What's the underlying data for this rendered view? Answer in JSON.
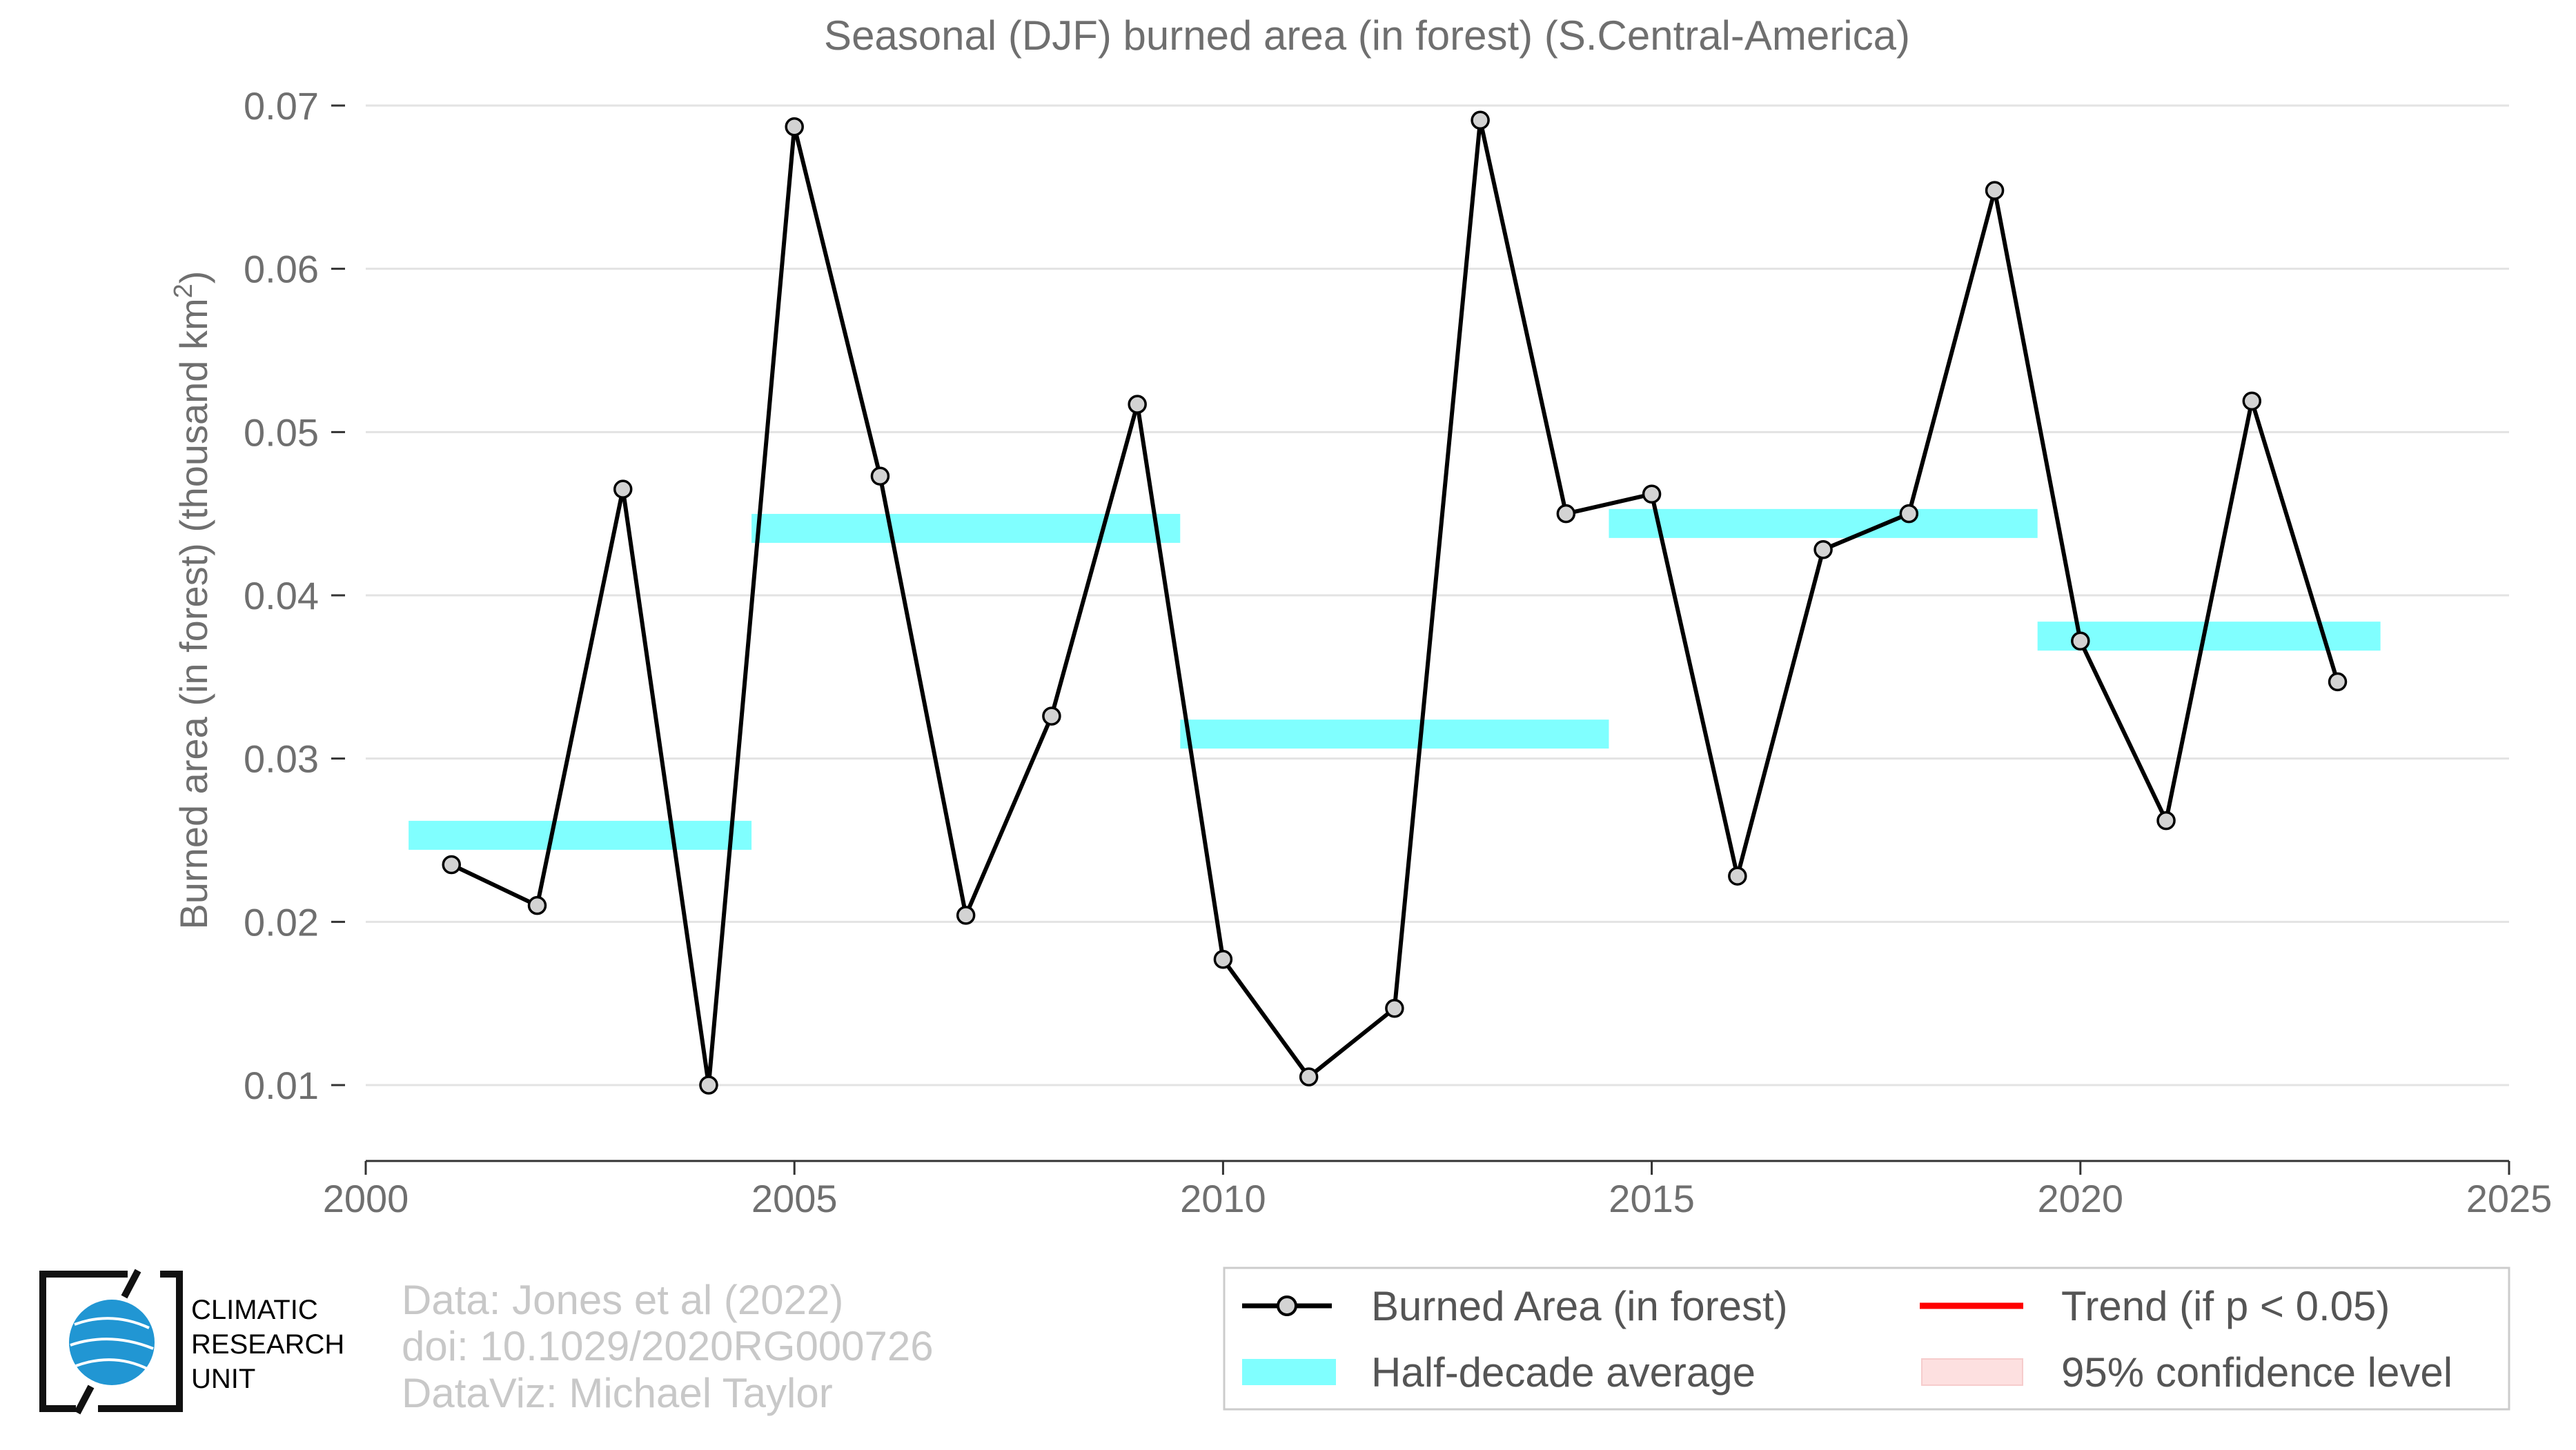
{
  "chart_data": {
    "type": "line",
    "title": "Seasonal (DJF) burned area (in forest) (S.Central-America)",
    "ylabel": "Burned area (in forest) (thousand km",
    "ylabel_sup": "2",
    "ylabel_close": ")",
    "xlim": [
      2000,
      2025
    ],
    "ylim": [
      0.0055,
      0.0705
    ],
    "x_ticks": [
      2000,
      2005,
      2010,
      2015,
      2020,
      2025
    ],
    "x_tick_labels": [
      "2000",
      "2005",
      "2010",
      "2015",
      "2020",
      "2025"
    ],
    "y_ticks": [
      0.01,
      0.02,
      0.03,
      0.04,
      0.05,
      0.06,
      0.07
    ],
    "y_tick_labels": [
      "0.01",
      "0.02",
      "0.03",
      "0.04",
      "0.05",
      "0.06",
      "0.07"
    ],
    "grid": "horizontal",
    "legend_position": "bottom-right",
    "series": [
      {
        "name": "Burned Area (in forest)",
        "color": "#000000",
        "marker_fill": "#d3d3d3",
        "x": [
          2001,
          2002,
          2003,
          2004,
          2005,
          2006,
          2007,
          2008,
          2009,
          2010,
          2011,
          2012,
          2013,
          2014,
          2015,
          2016,
          2017,
          2018,
          2019,
          2020,
          2021,
          2022,
          2023
        ],
        "values": [
          0.0235,
          0.021,
          0.0465,
          0.01,
          0.0687,
          0.0473,
          0.0204,
          0.0326,
          0.0517,
          0.0177,
          0.0105,
          0.0147,
          0.0691,
          0.045,
          0.0462,
          0.0228,
          0.0428,
          0.045,
          0.0648,
          0.0372,
          0.0262,
          0.0519,
          0.0347
        ]
      }
    ],
    "half_decade_averages": {
      "name": "Half-decade average",
      "color": "#80ffff",
      "x_start": [
        2000.5,
        2004.5,
        2009.5,
        2014.5,
        2019.5
      ],
      "x_end": [
        2004.5,
        2009.5,
        2014.5,
        2019.5,
        2023.5
      ],
      "values": [
        0.0253,
        0.0441,
        0.0315,
        0.0444,
        0.0375
      ]
    },
    "legend": [
      {
        "label": "Burned Area (in forest)",
        "kind": "line-marker",
        "color": "#000000"
      },
      {
        "label": "Trend (if p < 0.05)",
        "kind": "line",
        "color": "#ff0000"
      },
      {
        "label": "Half-decade average",
        "kind": "band",
        "color": "#80ffff"
      },
      {
        "label": "95% confidence level",
        "kind": "band",
        "color": "#fde0e0"
      }
    ]
  },
  "credits": {
    "line1": "Data: Jones et al (2022)",
    "line2": "doi: 10.1029/2020RG000726",
    "line3": "DataViz: Michael Taylor"
  },
  "logo": {
    "line1": "CLIMATIC",
    "line2": "RESEARCH",
    "line3": "UNIT",
    "globe_color": "#2196d3"
  }
}
